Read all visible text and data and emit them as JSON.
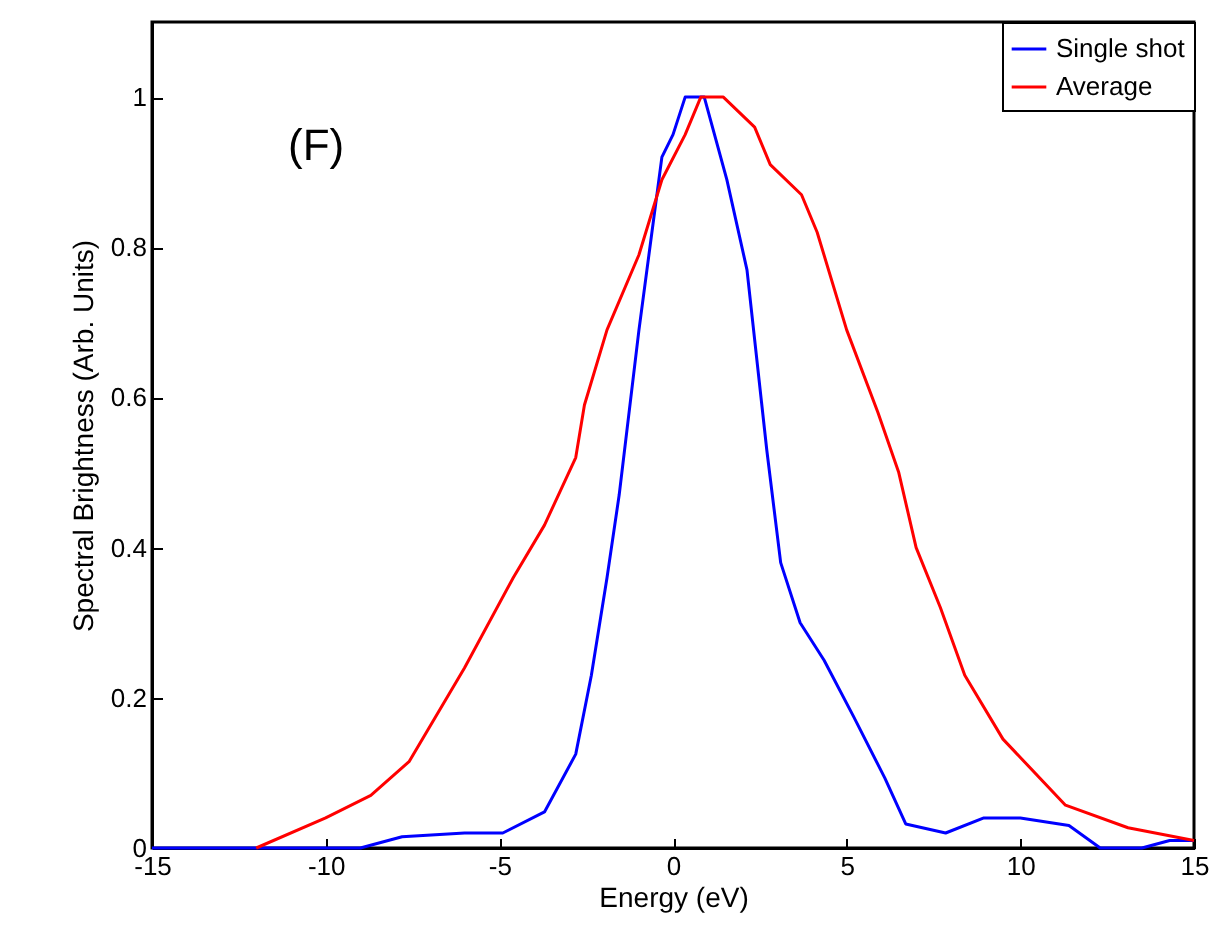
{
  "chart_data": {
    "type": "line",
    "xlabel": "Energy (eV)",
    "ylabel": "Spectral Brightness (Arb. Units)",
    "annotations": [
      "(F)"
    ],
    "xlim": [
      -15,
      15
    ],
    "xticks": [
      -15,
      -10,
      -5,
      0,
      5,
      10,
      15
    ],
    "ylim": [
      0,
      1.1
    ],
    "yticks": [
      0,
      0.2,
      0.4,
      0.6,
      0.8,
      1
    ],
    "grid": false,
    "legend": "top right",
    "marker": "none",
    "line_style": "solid",
    "series": [
      {
        "name": "Single shot",
        "color": "#0000ff",
        "x": [
          -15,
          -13.5,
          -12,
          -9,
          -7.8,
          -6,
          -4.9,
          -3.7,
          -2.8,
          -2.35,
          -1.9,
          -1.55,
          -0.98,
          -0.32,
          0,
          0.35,
          0.9,
          1.55,
          2.13,
          2.7,
          3.1,
          3.66,
          4.35,
          5.2,
          6.1,
          6.7,
          7.85,
          8.95,
          10,
          11.4,
          12.3,
          13.5,
          14.3,
          15
        ],
        "values": [
          0,
          0,
          0,
          0,
          0.015,
          0.02,
          0.02,
          0.048,
          0.125,
          0.23,
          0.36,
          0.47,
          0.69,
          0.92,
          0.95,
          1.0,
          1.0,
          0.89,
          0.77,
          0.53,
          0.38,
          0.3,
          0.25,
          0.175,
          0.093,
          0.032,
          0.02,
          0.04,
          0.04,
          0.03,
          0,
          0,
          0.01,
          0.01
        ]
      },
      {
        "name": "Average",
        "color": "#ff0000",
        "x": [
          -12,
          -10,
          -8.7,
          -7.6,
          -6,
          -4.6,
          -3.7,
          -2.8,
          -2.55,
          -1.9,
          -0.98,
          -0.32,
          0.35,
          0.8,
          1.45,
          2.35,
          2.8,
          3.7,
          4.15,
          5,
          5.9,
          6.5,
          7,
          7.7,
          8.4,
          9.5,
          11.3,
          13.1,
          15
        ],
        "values": [
          0,
          0.04,
          0.07,
          0.115,
          0.24,
          0.36,
          0.43,
          0.52,
          0.59,
          0.69,
          0.79,
          0.89,
          0.95,
          1.0,
          1.0,
          0.96,
          0.91,
          0.87,
          0.82,
          0.69,
          0.58,
          0.5,
          0.4,
          0.32,
          0.23,
          0.145,
          0.057,
          0.027,
          0.01
        ]
      }
    ]
  }
}
